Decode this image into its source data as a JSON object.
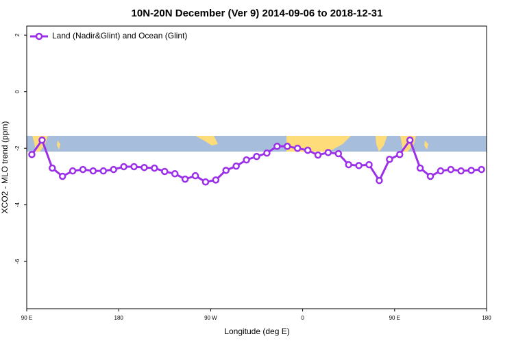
{
  "chart_data": {
    "type": "line",
    "title": "10N-20N December (Ver 9)   2014-09-06 to 2018-12-31",
    "x_label": "Longitude (deg E)",
    "y_label": "XCO2 - MLO trend (ppm)",
    "xlim": [
      90,
      540
    ],
    "xticks": [
      {
        "value": 90,
        "label": "90 E"
      },
      {
        "value": 180,
        "label": "180"
      },
      {
        "value": 270,
        "label": "90 W"
      },
      {
        "value": 360,
        "label": "0"
      },
      {
        "value": 450,
        "label": "90 E"
      },
      {
        "value": 540,
        "label": "180"
      }
    ],
    "ylim": [
      -7.67,
      2.32
    ],
    "yticks": [
      2,
      0,
      -2,
      -4,
      -6
    ],
    "x": [
      95,
      105,
      115,
      125,
      135,
      145,
      155,
      165,
      175,
      185,
      195,
      205,
      215,
      225,
      235,
      245,
      255,
      265,
      275,
      285,
      295,
      305,
      315,
      325,
      335,
      345,
      355,
      365,
      375,
      385,
      395,
      405,
      415,
      425,
      435,
      445,
      455,
      465,
      475,
      485,
      495,
      505,
      515,
      525,
      535
    ],
    "series": [
      {
        "name": "Land (Nadir&Glint) and Ocean (Glint)",
        "color": "#9b30e8",
        "values": [
          -2.22,
          -1.71,
          -2.7,
          -2.99,
          -2.8,
          -2.75,
          -2.8,
          -2.8,
          -2.75,
          -2.65,
          -2.65,
          -2.68,
          -2.7,
          -2.82,
          -2.9,
          -3.09,
          -2.97,
          -3.19,
          -3.12,
          -2.78,
          -2.63,
          -2.41,
          -2.29,
          -2.17,
          -1.93,
          -1.93,
          -2.0,
          -2.07,
          -2.24,
          -2.15,
          -2.19,
          -2.58,
          -2.61,
          -2.58,
          -3.14,
          -2.39,
          -2.22,
          -1.71,
          -2.7,
          -2.99,
          -2.8,
          -2.75,
          -2.8,
          -2.78,
          -2.75
        ]
      }
    ]
  }
}
